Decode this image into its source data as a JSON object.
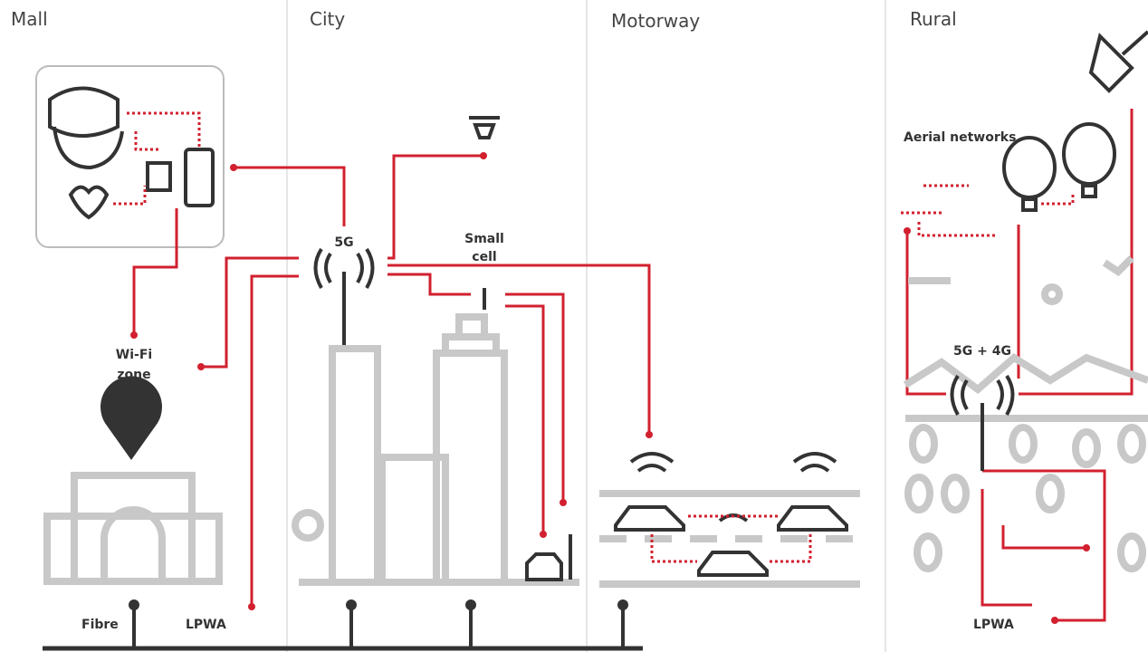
{
  "sections": [
    {
      "title": "Mall"
    },
    {
      "title": "City"
    },
    {
      "title": "Motorway"
    },
    {
      "title": "Rural"
    }
  ],
  "labels": {
    "tower_5g": "5G",
    "small_cell": [
      "Small",
      "cell"
    ],
    "wifi_zone": [
      "Wi-Fi",
      "zone"
    ],
    "aerial_networks": "Aerial networks",
    "tower_5g_4g": "5G + 4G",
    "fibre": "Fibre",
    "lpwa_mall": "LPWA",
    "lpwa_rural": "LPWA"
  }
}
